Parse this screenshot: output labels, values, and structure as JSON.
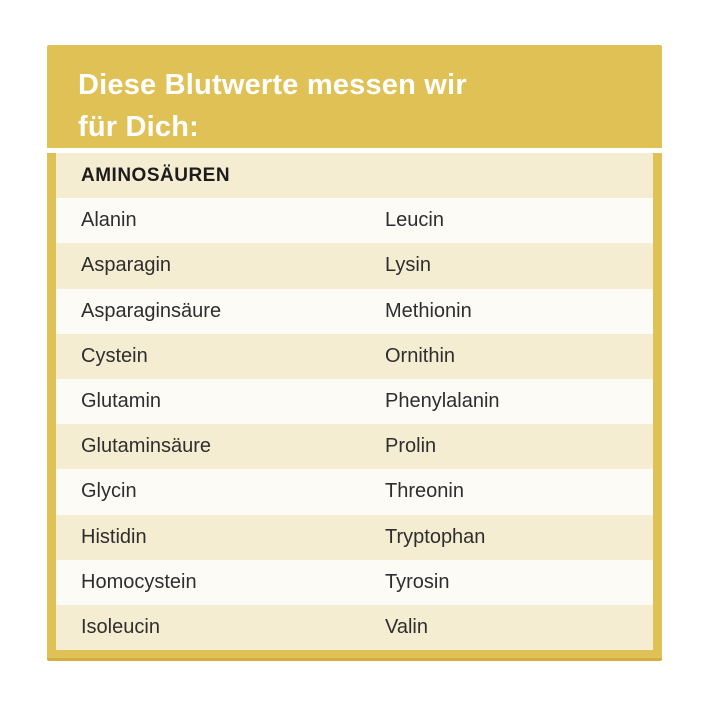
{
  "header": {
    "title_line1": "Diese Blutwerte messen wir",
    "title_line2": "für Dich:"
  },
  "table": {
    "section_title": "AMINOSÄUREN",
    "columns": [
      "left",
      "right"
    ],
    "rows": [
      {
        "left": "Alanin",
        "right": "Leucin"
      },
      {
        "left": "Asparagin",
        "right": "Lysin"
      },
      {
        "left": "Asparaginsäure",
        "right": "Methionin"
      },
      {
        "left": "Cystein",
        "right": "Ornithin"
      },
      {
        "left": "Glutamin",
        "right": "Phenylalanin"
      },
      {
        "left": "Glutaminsäure",
        "right": "Prolin"
      },
      {
        "left": "Glycin",
        "right": "Threonin"
      },
      {
        "left": "Histidin",
        "right": "Tryptophan"
      },
      {
        "left": "Homocystein",
        "right": "Tyrosin"
      },
      {
        "left": "Isoleucin",
        "right": "Valin"
      }
    ]
  },
  "colors": {
    "gold": "#dfc155",
    "gold_dark": "#d1ae3f",
    "cream": "#f4edd2",
    "row_light": "#fdfbf6",
    "text_dark": "#2e2e2e",
    "title_white": "#ffffff"
  }
}
